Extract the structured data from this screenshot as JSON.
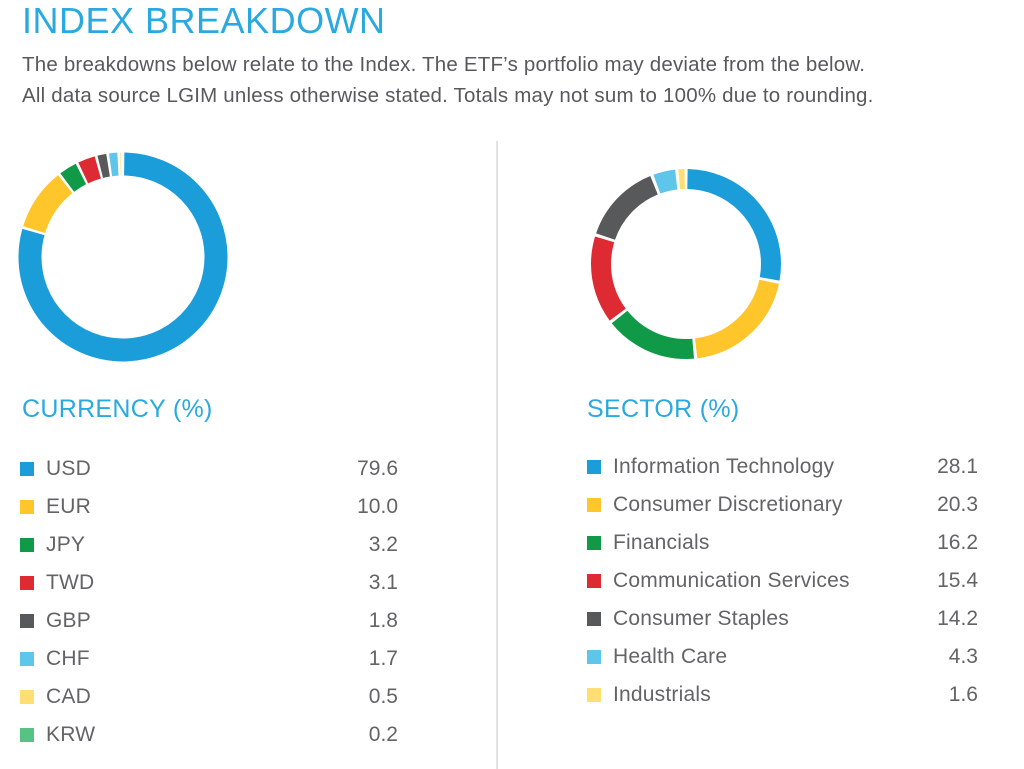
{
  "header": {
    "title": "INDEX BREAKDOWN",
    "subtitle_line1": "The breakdowns below relate to the Index. The ETF’s portfolio may deviate from the below.",
    "subtitle_line2": "All data source LGIM unless otherwise stated. Totals may not sum to 100% due to rounding."
  },
  "colors": {
    "accent_blue": "#2AA9E1",
    "body_text": "#58595B",
    "legend_text": "#636466",
    "divider": "#E3E3E3",
    "background": "#FFFFFF"
  },
  "chart_data": [
    {
      "type": "pie",
      "donut": true,
      "title": "CURRENCY (%)",
      "categories": [
        "USD",
        "EUR",
        "JPY",
        "TWD",
        "GBP",
        "CHF",
        "CAD",
        "KRW"
      ],
      "values": [
        79.6,
        10.0,
        3.2,
        3.1,
        1.8,
        1.7,
        0.5,
        0.2
      ],
      "colors": [
        "#1B9DD9",
        "#FFC62B",
        "#109A48",
        "#DE2A32",
        "#58595B",
        "#5EC5EB",
        "#FFDE72",
        "#56C385"
      ],
      "start_angle": "top",
      "direction": "clockwise",
      "legend_position": "below"
    },
    {
      "type": "pie",
      "donut": true,
      "title": "SECTOR (%)",
      "categories": [
        "Information Technology",
        "Consumer Discretionary",
        "Financials",
        "Communication Services",
        "Consumer Staples",
        "Health Care",
        "Industrials"
      ],
      "values": [
        28.1,
        20.3,
        16.2,
        15.4,
        14.2,
        4.3,
        1.6
      ],
      "colors": [
        "#1B9DD9",
        "#FFC62B",
        "#109A48",
        "#DE2A32",
        "#58595B",
        "#5EC5EB",
        "#FFDE72"
      ],
      "start_angle": "top",
      "direction": "clockwise",
      "legend_position": "below"
    }
  ]
}
